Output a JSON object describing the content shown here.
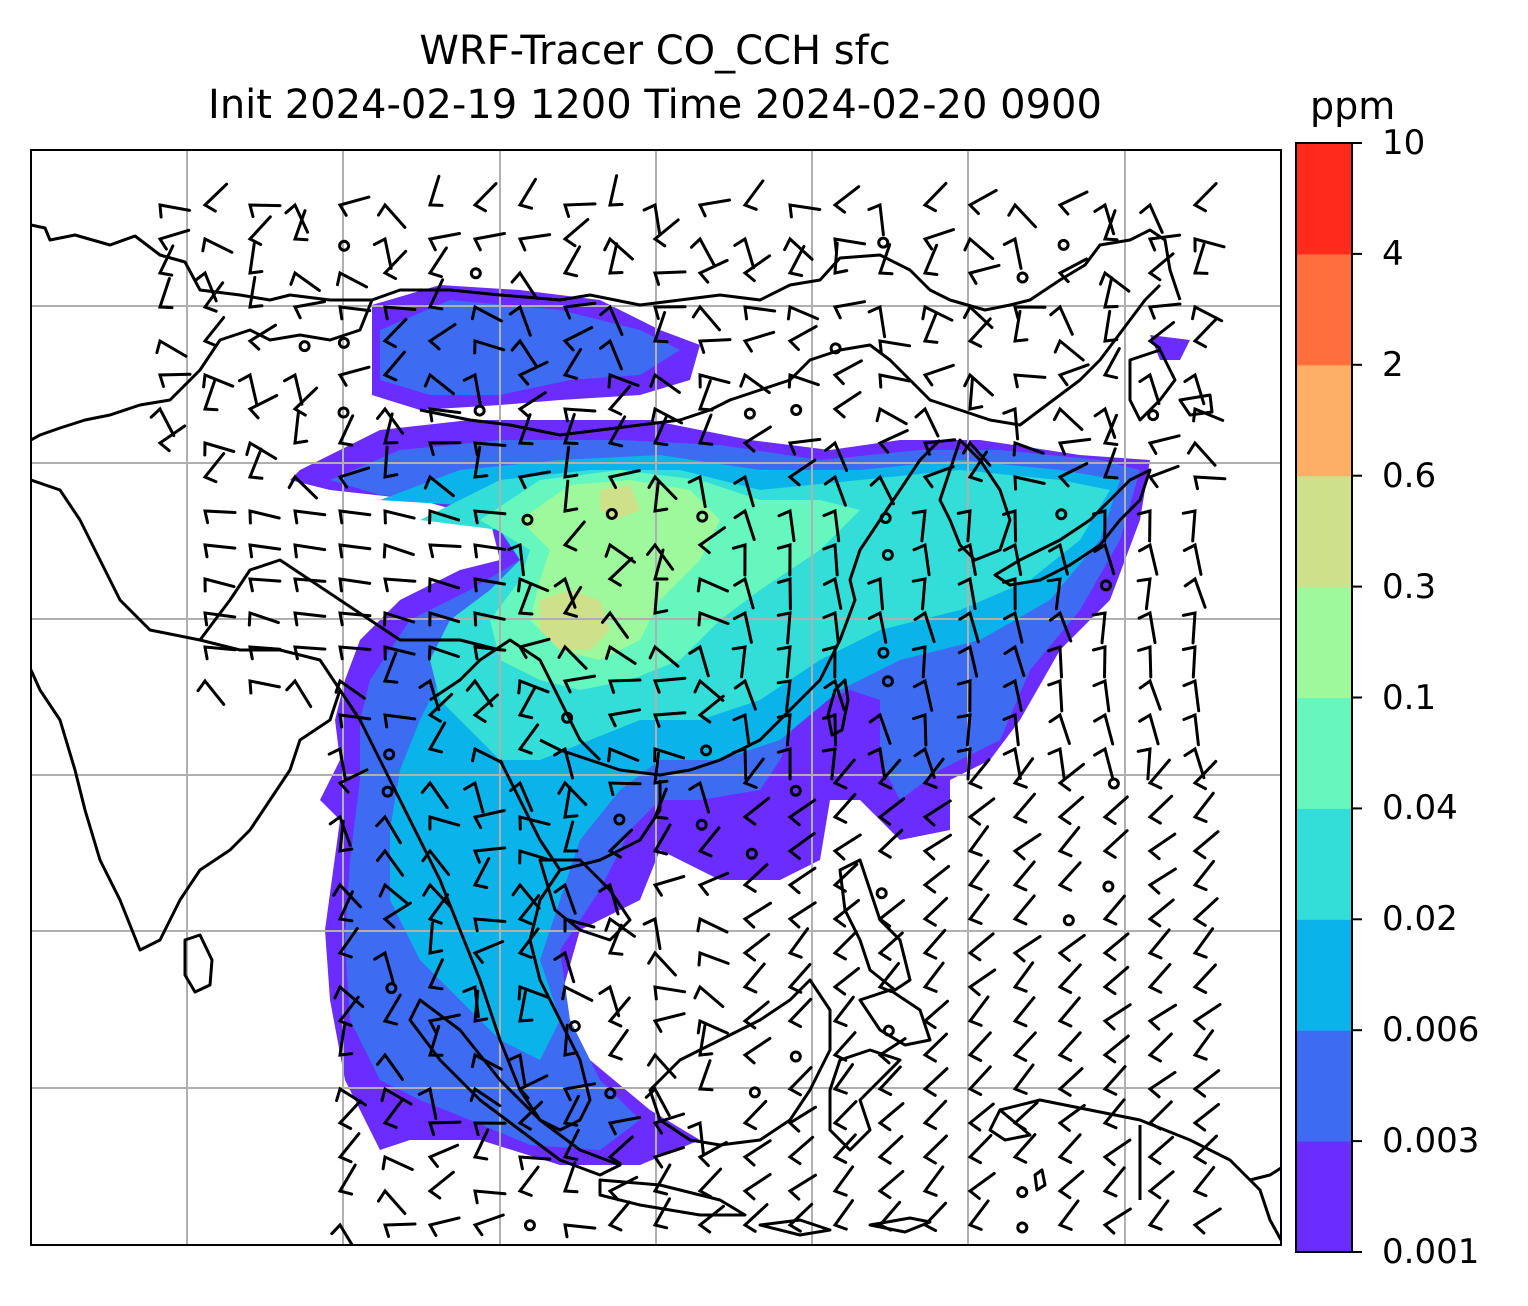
{
  "title": {
    "line1": "WRF-Tracer CO_CCH sfc",
    "line2": "Init 2024-02-19 1200 Time 2024-02-20 0900"
  },
  "colorbar": {
    "unit": "ppm",
    "levels": [
      "0.001",
      "0.003",
      "0.006",
      "0.02",
      "0.04",
      "0.1",
      "0.3",
      "0.6",
      "2",
      "4",
      "10"
    ],
    "colors": [
      "#6a2cff",
      "#3d6cf3",
      "#0ab4ea",
      "#32ded7",
      "#66f7bf",
      "#9ef99c",
      "#cfe08a",
      "#fdb065",
      "#ff6e3c",
      "#ff2a1c"
    ]
  },
  "map": {
    "frame_color": "#000000",
    "grid_color": "#b0b0b0",
    "coastline_color": "#000000",
    "wind_symbol": "wind-barb-icon",
    "calm_symbol": "calm-circle-icon"
  }
}
